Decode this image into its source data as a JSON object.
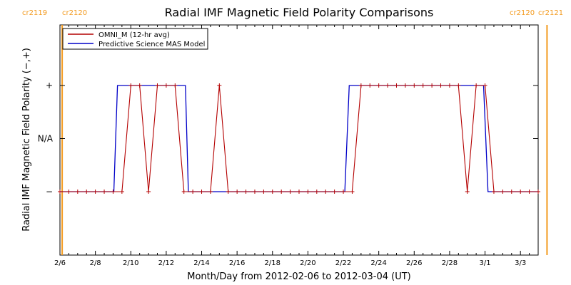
{
  "chart_data": {
    "type": "line",
    "title": "Radial IMF Magnetic Field Polarity Comparisons",
    "xlabel": "Month/Day from 2012-02-06 to 2012-03-04 (UT)",
    "ylabel": "Radial IMF Magnetic Field Polarity (−,+)",
    "xlim": [
      "2012-02-06",
      "2012-03-04"
    ],
    "ylim": [
      -2,
      2
    ],
    "x_ticks": [
      {
        "date": "2012-02-06",
        "label": "2/6"
      },
      {
        "date": "2012-02-08",
        "label": "2/8"
      },
      {
        "date": "2012-02-10",
        "label": "2/10"
      },
      {
        "date": "2012-02-12",
        "label": "2/12"
      },
      {
        "date": "2012-02-14",
        "label": "2/14"
      },
      {
        "date": "2012-02-16",
        "label": "2/16"
      },
      {
        "date": "2012-02-18",
        "label": "2/18"
      },
      {
        "date": "2012-02-20",
        "label": "2/20"
      },
      {
        "date": "2012-02-22",
        "label": "2/22"
      },
      {
        "date": "2012-02-24",
        "label": "2/24"
      },
      {
        "date": "2012-02-26",
        "label": "2/26"
      },
      {
        "date": "2012-02-28",
        "label": "2/28"
      },
      {
        "date": "2012-03-01",
        "label": "3/1"
      },
      {
        "date": "2012-03-03",
        "label": "3/3"
      }
    ],
    "y_ticks": [
      {
        "value": 1,
        "label": "+"
      },
      {
        "value": 0,
        "label": "N/A"
      },
      {
        "value": -1,
        "label": "−"
      }
    ],
    "legend": {
      "position": "top-left"
    },
    "grid": false,
    "carrington_markers": [
      {
        "date": "2012-02-06 03:00",
        "left_label": "cr2119",
        "right_label": "cr2120",
        "color": "#f39a1e"
      },
      {
        "date": "2012-03-04 12:00",
        "left_label": "cr2120",
        "right_label": "cr2121",
        "color": "#f39a1e"
      }
    ],
    "series": [
      {
        "name": "OMNI_M (12-hr avg)",
        "color": "#b40000",
        "marker": "+",
        "x": [
          "2012-02-06 00:00",
          "2012-02-06 12:00",
          "2012-02-07 00:00",
          "2012-02-07 12:00",
          "2012-02-08 00:00",
          "2012-02-08 12:00",
          "2012-02-09 00:00",
          "2012-02-09 12:00",
          "2012-02-10 00:00",
          "2012-02-10 12:00",
          "2012-02-11 00:00",
          "2012-02-11 12:00",
          "2012-02-12 00:00",
          "2012-02-12 12:00",
          "2012-02-13 00:00",
          "2012-02-13 12:00",
          "2012-02-14 00:00",
          "2012-02-14 12:00",
          "2012-02-15 00:00",
          "2012-02-15 12:00",
          "2012-02-16 00:00",
          "2012-02-16 12:00",
          "2012-02-17 00:00",
          "2012-02-17 12:00",
          "2012-02-18 00:00",
          "2012-02-18 12:00",
          "2012-02-19 00:00",
          "2012-02-19 12:00",
          "2012-02-20 00:00",
          "2012-02-20 12:00",
          "2012-02-21 00:00",
          "2012-02-21 12:00",
          "2012-02-22 00:00",
          "2012-02-22 12:00",
          "2012-02-23 00:00",
          "2012-02-23 12:00",
          "2012-02-24 00:00",
          "2012-02-24 12:00",
          "2012-02-25 00:00",
          "2012-02-25 12:00",
          "2012-02-26 00:00",
          "2012-02-26 12:00",
          "2012-02-27 00:00",
          "2012-02-27 12:00",
          "2012-02-28 00:00",
          "2012-02-28 12:00",
          "2012-02-29 00:00",
          "2012-02-29 12:00",
          "2012-03-01 00:00",
          "2012-03-01 12:00",
          "2012-03-02 00:00",
          "2012-03-02 12:00",
          "2012-03-03 00:00",
          "2012-03-03 12:00",
          "2012-03-04 00:00"
        ],
        "values": [
          -1,
          -1,
          -1,
          -1,
          -1,
          -1,
          -1,
          -1,
          1,
          1,
          -1,
          1,
          1,
          1,
          -1,
          -1,
          -1,
          -1,
          1,
          -1,
          -1,
          -1,
          -1,
          -1,
          -1,
          -1,
          -1,
          -1,
          -1,
          -1,
          -1,
          -1,
          -1,
          -1,
          1,
          1,
          1,
          1,
          1,
          1,
          1,
          1,
          1,
          1,
          1,
          1,
          -1,
          1,
          1,
          -1,
          -1,
          -1,
          -1,
          -1,
          -1
        ]
      },
      {
        "name": "Predictive Science MAS Model",
        "color": "#0000c8",
        "marker": "none",
        "step_points": [
          {
            "x": "2012-02-06 00:00",
            "y": -1
          },
          {
            "x": "2012-02-09 01:00",
            "y": -1
          },
          {
            "x": "2012-02-09 06:00",
            "y": 1
          },
          {
            "x": "2012-02-13 02:00",
            "y": 1
          },
          {
            "x": "2012-02-13 06:00",
            "y": -1
          },
          {
            "x": "2012-02-22 02:00",
            "y": -1
          },
          {
            "x": "2012-02-22 08:00",
            "y": 1
          },
          {
            "x": "2012-02-29 22:00",
            "y": 1
          },
          {
            "x": "2012-03-01 04:00",
            "y": -1
          },
          {
            "x": "2012-03-04 00:00",
            "y": -1
          }
        ]
      }
    ]
  }
}
